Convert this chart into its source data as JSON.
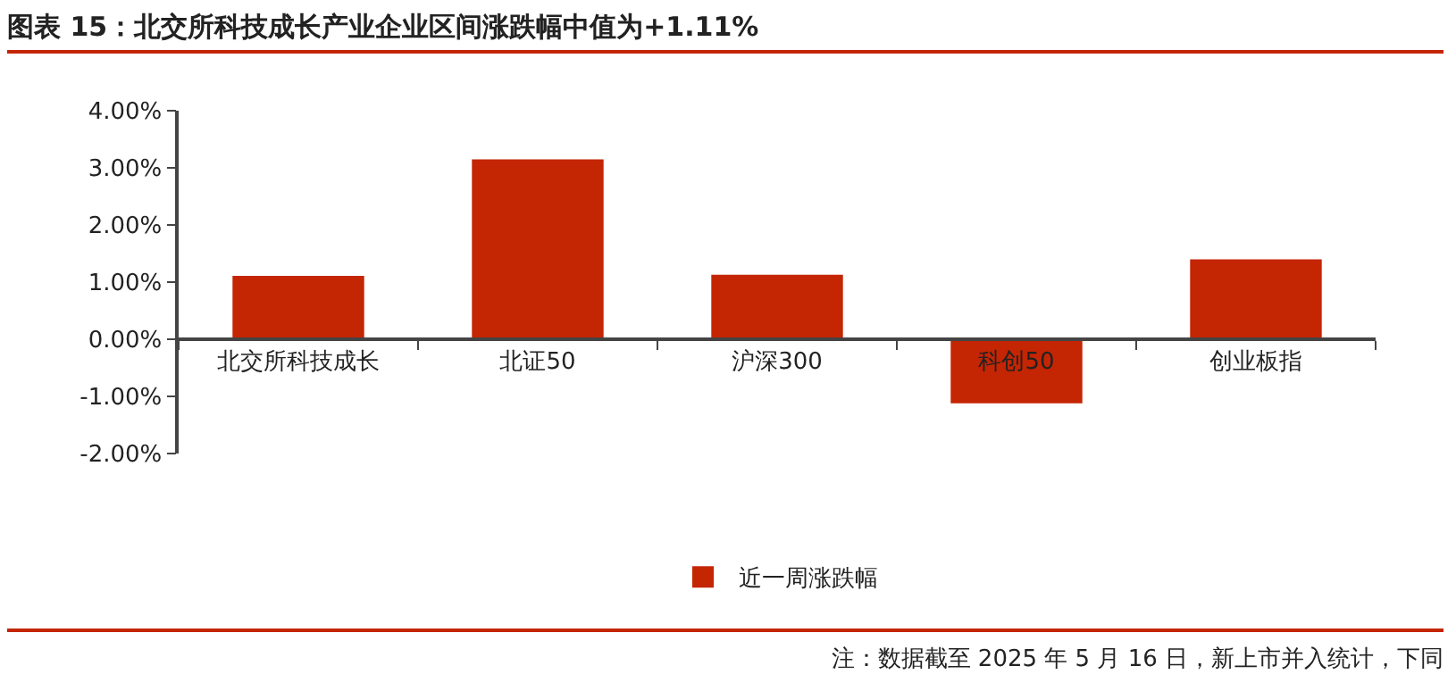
{
  "chart_data": {
    "type": "bar",
    "title": "图表 15：北交所科技成长产业企业区间涨跌幅中值为+1.11%",
    "categories": [
      "北交所科技成长",
      "北证50",
      "沪深300",
      "科创50",
      "创业板指"
    ],
    "series": [
      {
        "name": "近一周涨跌幅",
        "color": "#c42503",
        "values": [
          1.11,
          3.15,
          1.13,
          -1.12,
          1.4
        ]
      }
    ],
    "ylim": [
      -2,
      4
    ],
    "yticks": [
      {
        "value": -2,
        "label": "-2.00%"
      },
      {
        "value": -1,
        "label": "-1.00%"
      },
      {
        "value": 0,
        "label": "0.00%"
      },
      {
        "value": 1,
        "label": "1.00%"
      },
      {
        "value": 2,
        "label": "2.00%"
      },
      {
        "value": 3,
        "label": "3.00%"
      },
      {
        "value": 4,
        "label": "4.00%"
      }
    ],
    "grid": false,
    "legend": "bottom",
    "annotations": [
      "注：数据截至 2025 年 5 月 16 日，新上市并入统计，下同"
    ]
  }
}
